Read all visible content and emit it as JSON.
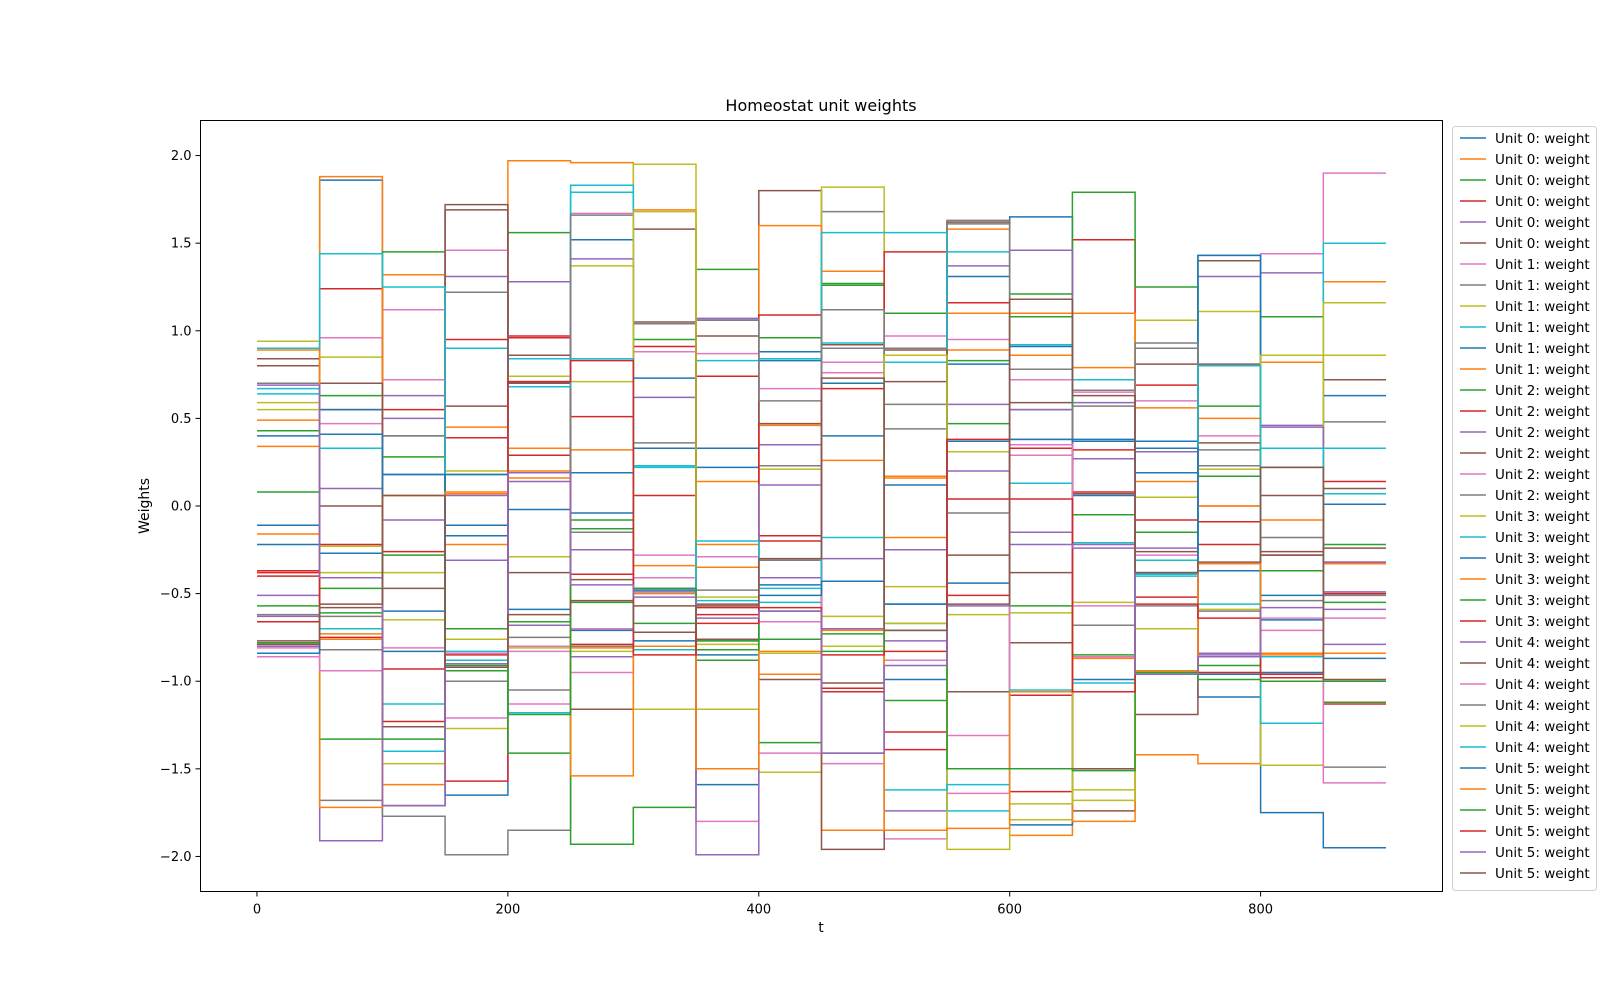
{
  "colors": [
    "#1f77b4",
    "#ff7f0e",
    "#2ca02c",
    "#d62728",
    "#9467bd",
    "#8c564b",
    "#e377c2",
    "#7f7f7f",
    "#bcbd22",
    "#17becf"
  ],
  "chart_data": {
    "type": "line",
    "step": "post",
    "title": "Homeostat unit weights",
    "xlabel": "t",
    "ylabel": "Weights",
    "xlim": [
      -45,
      945
    ],
    "ylim": [
      -2.2,
      2.2
    ],
    "xticks": [
      0,
      200,
      400,
      600,
      800
    ],
    "yticks": [
      -2.0,
      -1.5,
      -1.0,
      -0.5,
      0.0,
      0.5,
      1.0,
      1.5,
      2.0
    ],
    "ytick_labels": [
      "−2.0",
      "−1.5",
      "−1.0",
      "−0.5",
      "0.0",
      "0.5",
      "1.0",
      "1.5",
      "2.0"
    ],
    "grid": false,
    "legend_position": "outside-right",
    "x": [
      0,
      50,
      100,
      150,
      200,
      250,
      300,
      350,
      400,
      450,
      500,
      550,
      600,
      650,
      700,
      750,
      800,
      850,
      900
    ],
    "series": [
      {
        "name": "Unit 0: weight",
        "values": [
          0.4,
          1.86,
          -0.6,
          -1.65,
          -0.02,
          1.52,
          0.33,
          -1.59,
          0.88,
          0.4,
          -0.99,
          1.31,
          1.65,
          -0.99,
          0.37,
          -1.09,
          -1.75,
          -1.95,
          -1.95
        ]
      },
      {
        "name": "Unit 0: weight",
        "values": [
          0.49,
          1.88,
          0.06,
          -0.22,
          1.97,
          1.96,
          1.69,
          0.14,
          -0.96,
          1.34,
          0.16,
          1.1,
          -1.88,
          0.79,
          0.14,
          0.5,
          -0.85,
          1.28,
          1.28
        ]
      },
      {
        "name": "Unit 0: weight",
        "values": [
          0.43,
          0.63,
          1.45,
          0.18,
          1.56,
          -0.13,
          0.95,
          1.35,
          0.96,
          1.27,
          -0.67,
          0.47,
          -0.57,
          -0.05,
          -0.95,
          0.57,
          -0.37,
          -0.22,
          -0.22
        ]
      },
      {
        "name": "Unit 0: weight",
        "values": [
          -0.4,
          0.55,
          -0.26,
          0.39,
          0.97,
          0.51,
          0.06,
          -0.62,
          -0.17,
          -1.04,
          -1.29,
          1.16,
          -1.63,
          1.52,
          -0.08,
          -0.22,
          -0.28,
          0.14,
          0.14
        ]
      },
      {
        "name": "Unit 0: weight",
        "values": [
          -0.63,
          -1.91,
          0.5,
          -0.31,
          1.28,
          -0.25,
          0.62,
          1.07,
          0.35,
          -0.3,
          -0.25,
          0.58,
          -0.15,
          0.59,
          0.31,
          1.31,
          1.33,
          -0.79,
          -0.79
        ]
      },
      {
        "name": "Unit 0: weight",
        "values": [
          0.8,
          0.0,
          -1.71,
          1.72,
          -0.38,
          0.84,
          1.58,
          -0.76,
          1.8,
          0.92,
          0.71,
          -1.06,
          0.59,
          -1.74,
          0.81,
          1.4,
          -0.26,
          0.72,
          0.72
        ]
      },
      {
        "name": "Unit 1: weight",
        "values": [
          -0.37,
          0.96,
          1.12,
          1.46,
          -1.13,
          1.67,
          0.88,
          0.87,
          0.67,
          0.76,
          0.97,
          0.95,
          0.72,
          -0.86,
          0.6,
          0.4,
          1.44,
          1.9,
          1.9
        ]
      },
      {
        "name": "Unit 1: weight",
        "values": [
          0.84,
          -1.68,
          -1.77,
          -1.99,
          -1.85,
          -0.15,
          -0.82,
          -0.48,
          -0.31,
          1.68,
          0.44,
          1.63,
          0.78,
          0.66,
          -0.57,
          -0.6,
          -0.18,
          0.48,
          0.48
        ]
      },
      {
        "name": "Unit 1: weight",
        "values": [
          0.94,
          0.85,
          -1.47,
          0.2,
          -0.29,
          0.71,
          1.95,
          -0.52,
          0.21,
          1.82,
          -0.46,
          0.31,
          -1.79,
          -0.55,
          1.06,
          1.11,
          0.86,
          0.86,
          0.86
        ]
      },
      {
        "name": "Unit 1: weight",
        "values": [
          0.67,
          -0.7,
          -1.13,
          0.9,
          0.84,
          1.79,
          0.22,
          0.83,
          0.84,
          0.93,
          0.82,
          1.45,
          0.92,
          0.72,
          -0.4,
          -0.56,
          0.33,
          1.5,
          1.5
        ]
      },
      {
        "name": "Unit 1: weight",
        "values": [
          -0.11,
          -0.27,
          0.18,
          -0.17,
          0.19,
          0.19,
          -0.48,
          0.22,
          -0.45,
          0.7,
          -0.56,
          0.81,
          -1.82,
          0.06,
          -0.38,
          -0.96,
          -0.95,
          0.63,
          0.63
        ]
      },
      {
        "name": "Unit 1: weight",
        "values": [
          -0.16,
          -0.73,
          -1.59,
          0.07,
          0.33,
          -0.81,
          -0.34,
          -0.22,
          1.6,
          -1.85,
          0.17,
          1.58,
          0.86,
          -1.8,
          -1.42,
          -1.47,
          0.82,
          -0.5,
          -0.5
        ]
      },
      {
        "name": "Unit 2: weight",
        "values": [
          0.08,
          -1.33,
          0.28,
          -0.94,
          -0.66,
          -1.93,
          -1.72,
          -0.88,
          -1.35,
          1.26,
          1.1,
          -1.5,
          1.21,
          1.79,
          1.25,
          0.17,
          1.08,
          -1.12,
          -1.12
        ]
      },
      {
        "name": "Unit 2: weight",
        "values": [
          -0.38,
          1.24,
          0.55,
          -1.57,
          0.29,
          -0.79,
          0.91,
          -0.58,
          1.09,
          -1.06,
          1.45,
          0.04,
          -1.08,
          0.32,
          0.69,
          -0.09,
          -0.96,
          -1.13,
          -1.13
        ]
      },
      {
        "name": "Unit 2: weight",
        "values": [
          -0.8,
          0.1,
          0.63,
          0.06,
          0.14,
          -0.86,
          -0.47,
          1.07,
          -0.41,
          -1.41,
          -1.74,
          1.37,
          1.46,
          0.27,
          -0.24,
          -0.85,
          0.46,
          -0.59,
          -0.59
        ]
      },
      {
        "name": "Unit 2: weight",
        "values": [
          0.84,
          -0.58,
          -1.26,
          0.57,
          0.86,
          -1.16,
          1.05,
          -0.56,
          -0.99,
          -1.01,
          0.86,
          1.62,
          -0.78,
          -1.5,
          -1.19,
          0.36,
          -0.28,
          0.1,
          0.1
        ]
      },
      {
        "name": "Unit 2: weight",
        "values": [
          -0.86,
          0.47,
          0.72,
          -1.21,
          -0.8,
          -0.95,
          -0.28,
          -1.8,
          -1.41,
          -1.47,
          -1.9,
          -1.64,
          0.29,
          0.65,
          -0.39,
          0.0,
          -0.64,
          -0.64,
          -0.64
        ]
      },
      {
        "name": "Unit 2: weight",
        "values": [
          -0.62,
          -0.63,
          0.4,
          1.22,
          -0.75,
          -0.8,
          0.36,
          -0.77,
          0.23,
          0.9,
          0.9,
          1.61,
          0.55,
          -0.68,
          0.9,
          0.23,
          -1.48,
          -1.49,
          -1.49
        ]
      },
      {
        "name": "Unit 3: weight",
        "values": [
          0.59,
          -0.23,
          -0.38,
          -1.27,
          0.74,
          1.37,
          -1.16,
          -1.16,
          -1.52,
          -0.8,
          -0.67,
          -0.62,
          -0.61,
          -1.68,
          0.05,
          0.21,
          -1.48,
          1.16,
          1.16
        ]
      },
      {
        "name": "Unit 3: weight",
        "values": [
          0.64,
          0.33,
          -1.4,
          -0.88,
          -1.18,
          1.83,
          0.23,
          -0.54,
          -0.55,
          1.56,
          1.56,
          -1.74,
          0.13,
          -0.21,
          -0.39,
          1.43,
          -1.24,
          0.07,
          0.07
        ]
      },
      {
        "name": "Unit 3: weight",
        "values": [
          -0.22,
          0.55,
          0.18,
          -0.11,
          0.71,
          -0.04,
          0.73,
          0.33,
          0.83,
          -0.43,
          0.12,
          -0.44,
          0.91,
          0.38,
          0.19,
          1.43,
          -0.65,
          0.01,
          0.01
        ]
      },
      {
        "name": "Unit 3: weight",
        "values": [
          0.34,
          -1.72,
          1.32,
          0.45,
          0.2,
          0.32,
          -0.5,
          -0.35,
          0.46,
          0.26,
          -0.18,
          0.89,
          1.1,
          1.1,
          0.56,
          0.0,
          -0.08,
          -0.33,
          -0.33
        ]
      },
      {
        "name": "Unit 3: weight",
        "values": [
          -0.57,
          -0.47,
          -1.33,
          -0.7,
          -1.41,
          -0.55,
          -0.67,
          -0.77,
          -0.76,
          -0.73,
          -1.11,
          0.83,
          1.08,
          -0.85,
          -0.15,
          -0.91,
          0.22,
          -0.55,
          -0.55
        ]
      },
      {
        "name": "Unit 3: weight",
        "values": [
          -0.66,
          -0.22,
          -0.93,
          0.95,
          0.96,
          -0.39,
          -0.82,
          0.74,
          -0.2,
          0.67,
          -1.39,
          -0.51,
          0.33,
          0.08,
          -0.52,
          -0.95,
          -0.98,
          -0.32,
          -0.32
        ]
      },
      {
        "name": "Unit 4: weight",
        "values": [
          -0.51,
          -0.41,
          -0.08,
          1.31,
          -0.68,
          1.41,
          -0.49,
          -1.99,
          0.12,
          -0.7,
          -0.77,
          0.2,
          0.55,
          -0.22,
          0.33,
          -0.84,
          0.45,
          -0.32,
          -0.32
        ]
      },
      {
        "name": "Unit 4: weight",
        "values": [
          -0.77,
          0.7,
          -0.47,
          1.69,
          0.7,
          -0.42,
          -0.57,
          0.97,
          0.47,
          -1.96,
          0.89,
          -0.28,
          -0.38,
          0.07,
          -0.26,
          0.81,
          0.06,
          -0.24,
          -0.24
        ]
      },
      {
        "name": "Unit 4: weight",
        "values": [
          -0.81,
          -0.94,
          -0.81,
          -0.84,
          -0.83,
          -0.7,
          -0.41,
          -0.29,
          -0.66,
          0.82,
          -0.88,
          -1.31,
          0.35,
          -0.57,
          -0.28,
          -0.86,
          -0.71,
          -1.58,
          -1.58
        ]
      },
      {
        "name": "Unit 4: weight",
        "values": [
          0.7,
          -0.82,
          0.4,
          -1.0,
          -1.05,
          1.66,
          1.04,
          1.06,
          0.6,
          1.12,
          0.58,
          -0.04,
          0.38,
          0.57,
          0.93,
          0.32,
          -0.54,
          -0.51,
          -0.51
        ]
      },
      {
        "name": "Unit 4: weight",
        "values": [
          0.55,
          -0.38,
          -0.65,
          -0.76,
          -0.81,
          -0.83,
          1.68,
          -0.79,
          -0.84,
          -0.63,
          0.86,
          -1.96,
          -1.7,
          -1.62,
          -0.7,
          -0.59,
          0.86,
          0.86,
          0.86
        ]
      },
      {
        "name": "Unit 4: weight",
        "values": [
          0.9,
          1.44,
          1.25,
          -0.83,
          0.68,
          0.84,
          -0.82,
          -0.2,
          -0.47,
          -0.18,
          -1.62,
          -1.59,
          -1.05,
          -1.01,
          -0.31,
          0.8,
          -0.86,
          0.33,
          0.33
        ]
      },
      {
        "name": "Unit 5: weight",
        "values": [
          -0.84,
          0.41,
          -0.83,
          0.18,
          -0.59,
          -0.71,
          -0.77,
          -0.85,
          -0.51,
          -0.43,
          -0.56,
          0.37,
          0.38,
          0.37,
          0.33,
          -0.37,
          -0.51,
          -0.87,
          -0.87
        ]
      },
      {
        "name": "Unit 5: weight",
        "values": [
          0.89,
          -0.76,
          0.06,
          0.08,
          0.16,
          -1.54,
          -0.8,
          -1.5,
          -0.83,
          -0.71,
          -1.85,
          -1.84,
          -1.06,
          -0.87,
          -0.94,
          -0.33,
          -0.84,
          -0.84,
          -0.84
        ]
      },
      {
        "name": "Unit 5: weight",
        "values": [
          -0.78,
          -0.61,
          -0.28,
          -0.91,
          -1.19,
          -0.08,
          -0.47,
          -0.82,
          -0.6,
          -0.83,
          -0.71,
          -1.5,
          -1.5,
          -1.51,
          -0.95,
          -0.99,
          -1.0,
          -1.0,
          -1.0
        ]
      },
      {
        "name": "Unit 5: weight",
        "values": [
          -0.37,
          -0.75,
          -1.23,
          -0.85,
          0.71,
          0.83,
          -0.85,
          -0.67,
          -0.58,
          -0.85,
          -0.83,
          0.38,
          0.04,
          -1.06,
          -0.56,
          -0.64,
          -0.96,
          -0.5,
          -0.5
        ]
      },
      {
        "name": "Unit 5: weight",
        "values": [
          0.69,
          -0.41,
          -1.71,
          -0.9,
          0.19,
          -0.45,
          -0.52,
          -0.64,
          -0.6,
          -1.41,
          -0.91,
          -0.57,
          -0.22,
          -0.24,
          -0.96,
          -0.86,
          -0.58,
          -0.49,
          -0.49
        ]
      },
      {
        "name": "Unit 5: weight",
        "values": [
          -0.79,
          -0.56,
          0.06,
          -0.92,
          -0.62,
          -0.54,
          -0.72,
          -0.57,
          -0.3,
          0.73,
          -0.71,
          -0.56,
          1.18,
          0.63,
          -0.38,
          -0.32,
          0.22,
          -0.99,
          -0.99
        ]
      }
    ]
  }
}
